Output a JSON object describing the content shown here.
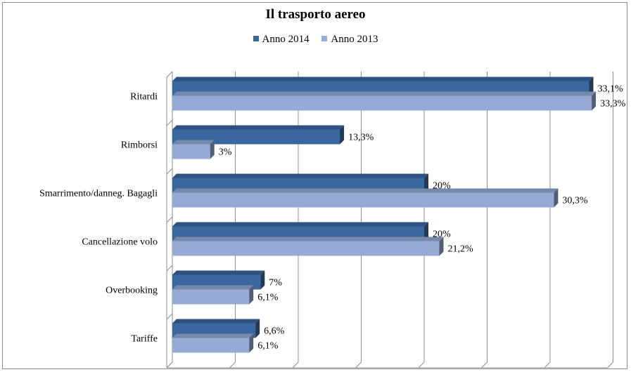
{
  "chart_data": {
    "type": "bar",
    "orientation": "horizontal",
    "title": "Il trasporto aereo",
    "categories": [
      "Ritardi",
      "Rimborsi",
      "Smarrimento/danneg. Bagagli",
      "Cancellazione volo",
      "Overbooking",
      "Tariffe"
    ],
    "series": [
      {
        "name": "Anno 2014",
        "color": "#3a679f",
        "values": [
          33.1,
          13.3,
          20,
          20,
          7,
          6.6
        ],
        "labels": [
          "33,1%",
          "13,3%",
          "20%",
          "20%",
          "7%",
          "6,6%"
        ]
      },
      {
        "name": "Anno 2013",
        "color": "#95abd6",
        "values": [
          33.3,
          3,
          30.3,
          21.2,
          6.1,
          6.1
        ],
        "labels": [
          "33,3%",
          "3%",
          "30,3%",
          "21,2%",
          "6,1%",
          "6,1%"
        ]
      }
    ],
    "xlim": [
      0,
      35
    ],
    "gridlines": true,
    "legend_position": "top"
  }
}
